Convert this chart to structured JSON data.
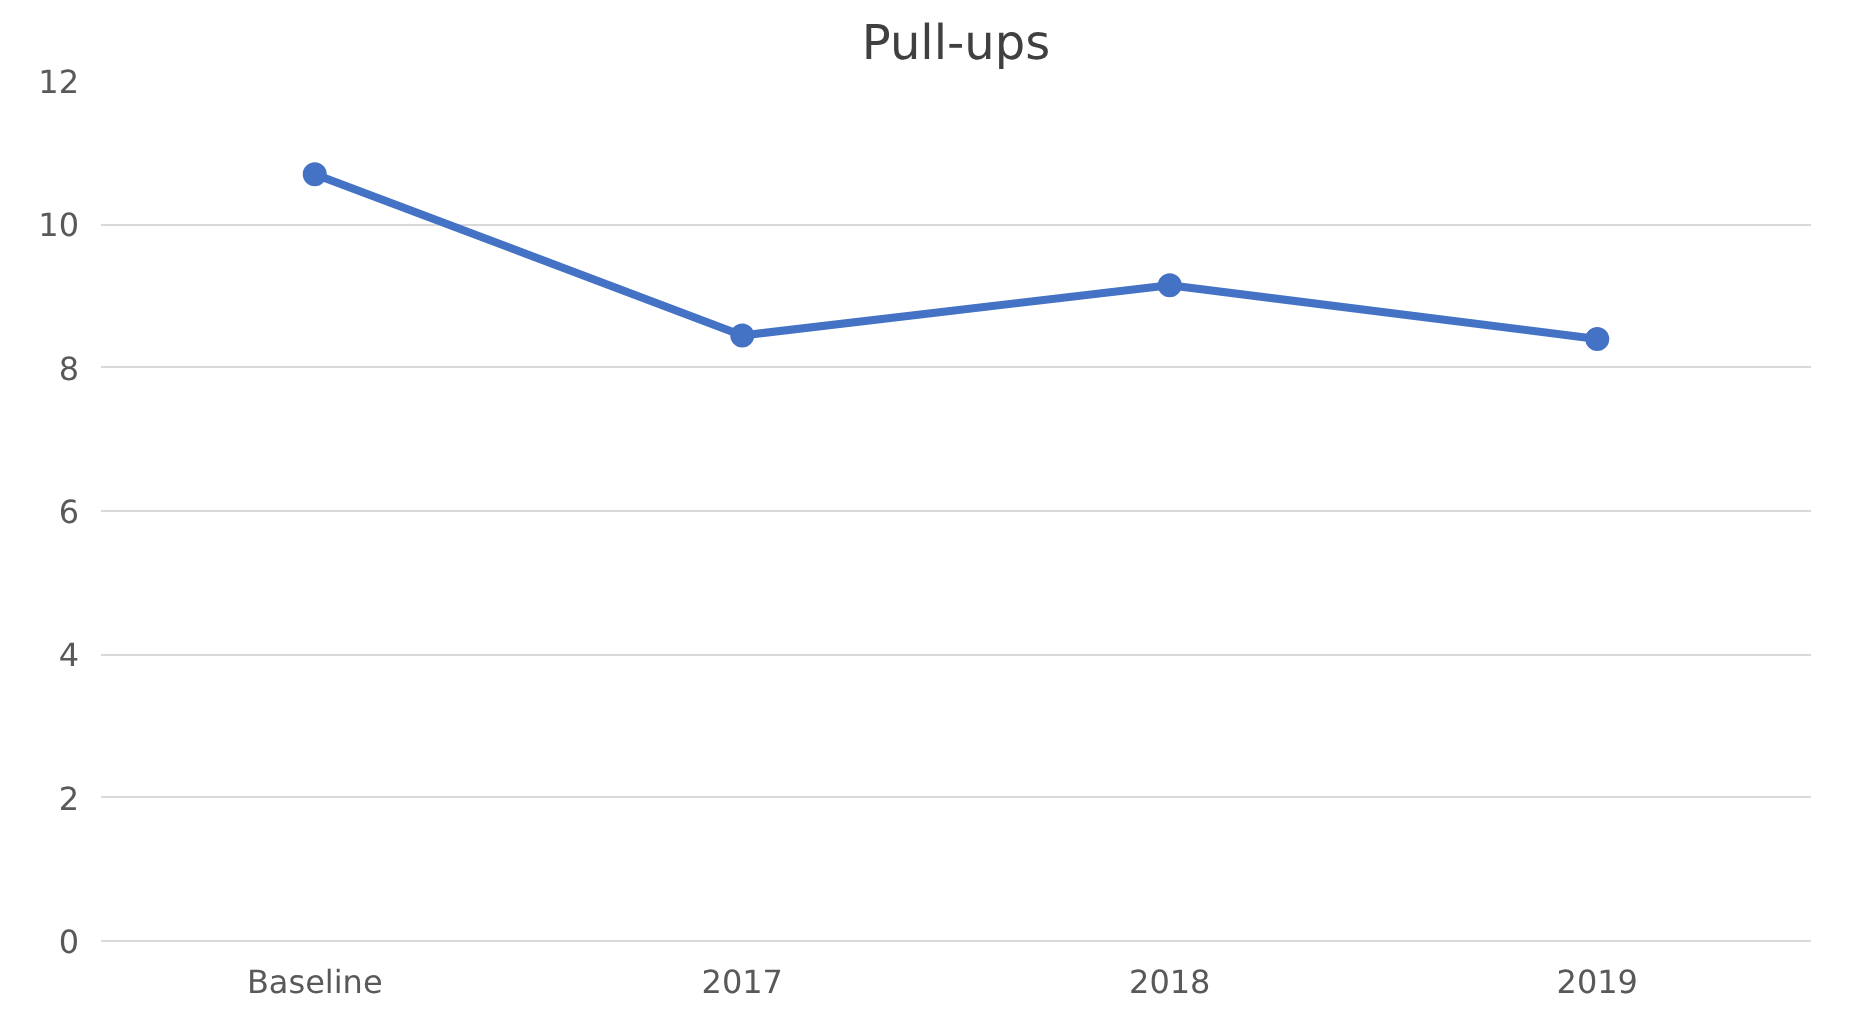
{
  "chart_data": {
    "type": "line",
    "title": "Pull-ups",
    "categories": [
      "Baseline",
      "2017",
      "2018",
      "2019"
    ],
    "series": [
      {
        "color": "#4472c4",
        "values": [
          10.7,
          8.45,
          9.15,
          8.4
        ]
      }
    ],
    "ylim": [
      0,
      12
    ],
    "yticks": [
      0,
      2,
      4,
      6,
      8,
      10,
      12
    ],
    "grid": "y",
    "marker": "circle",
    "line_style": "solid"
  }
}
